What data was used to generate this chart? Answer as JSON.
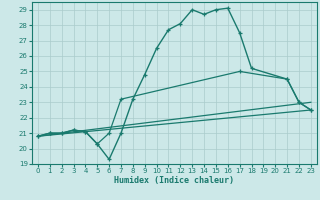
{
  "xlabel": "Humidex (Indice chaleur)",
  "xlim": [
    -0.5,
    23.5
  ],
  "ylim": [
    19,
    29.5
  ],
  "yticks": [
    19,
    20,
    21,
    22,
    23,
    24,
    25,
    26,
    27,
    28,
    29
  ],
  "xticks": [
    0,
    1,
    2,
    3,
    4,
    5,
    6,
    7,
    8,
    9,
    10,
    11,
    12,
    13,
    14,
    15,
    16,
    17,
    18,
    19,
    20,
    21,
    22,
    23
  ],
  "bg_color": "#cce8e8",
  "line_color": "#1a7a6e",
  "grid_color": "#aacccc",
  "line1_x": [
    0,
    1,
    2,
    3,
    4,
    5,
    6,
    7,
    8,
    9,
    10,
    11,
    12,
    13,
    14,
    15,
    16,
    17,
    18,
    21,
    22,
    23
  ],
  "line1_y": [
    20.8,
    21.0,
    21.0,
    21.2,
    21.1,
    20.3,
    19.3,
    21.0,
    23.2,
    24.8,
    26.5,
    27.7,
    28.1,
    29.0,
    28.7,
    29.0,
    29.1,
    27.5,
    25.2,
    24.5,
    23.0,
    22.5
  ],
  "line2_x": [
    0,
    1,
    2,
    3,
    4,
    5,
    6,
    7,
    17,
    21,
    22,
    23
  ],
  "line2_y": [
    20.8,
    21.0,
    21.0,
    21.2,
    21.1,
    20.3,
    21.0,
    23.2,
    25.0,
    24.5,
    23.0,
    22.5
  ],
  "line3_x": [
    0,
    23
  ],
  "line3_y": [
    20.8,
    23.0
  ],
  "line4_x": [
    0,
    23
  ],
  "line4_y": [
    20.8,
    22.5
  ]
}
